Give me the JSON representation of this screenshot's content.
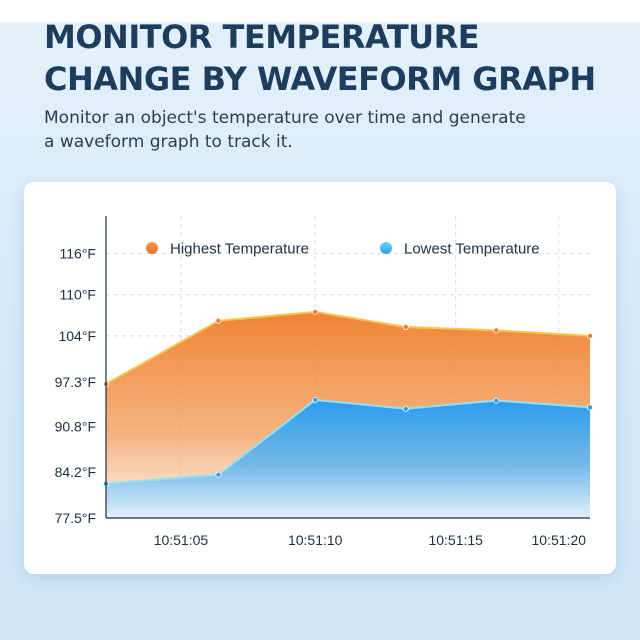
{
  "header": {
    "title_line1": "MONITOR TEMPERATURE",
    "title_line2": "CHANGE BY WAVEFORM GRAPH",
    "subtitle_line1": "Monitor an object's temperature over time and generate",
    "subtitle_line2": "a waveform graph to track it."
  },
  "colors": {
    "high": "#f08a3c",
    "high_line": "#f5c64a",
    "low": "#3aa8ee",
    "low_line": "#8fe3f5",
    "high_marker": "#f07a30",
    "low_marker": "#2a9ee6"
  },
  "chart_data": {
    "type": "area",
    "title": "",
    "xlabel": "",
    "ylabel": "",
    "unit": "°F",
    "x_range": [
      0,
      15.5
    ],
    "ylim": [
      77.5,
      120
    ],
    "yticks": [
      {
        "value": 77.5,
        "label": "77.5°F"
      },
      {
        "value": 84.2,
        "label": "84.2°F"
      },
      {
        "value": 90.8,
        "label": "90.8°F"
      },
      {
        "value": 97.3,
        "label": "97.3°F"
      },
      {
        "value": 104,
        "label": "104°F"
      },
      {
        "value": 110,
        "label": "110°F"
      },
      {
        "value": 116,
        "label": "116°F"
      }
    ],
    "xticks": [
      {
        "value": 2.4,
        "label": "10:51:05"
      },
      {
        "value": 6.7,
        "label": "10:51:10"
      },
      {
        "value": 11.2,
        "label": "10:51:15"
      },
      {
        "value": 14.5,
        "label": "10:51:20"
      }
    ],
    "grid": true,
    "legend": "top",
    "series": [
      {
        "name": "Highest Temperature",
        "x": [
          0,
          3.6,
          6.7,
          9.6,
          12.5,
          15.5
        ],
        "values": [
          97.0,
          106.2,
          107.5,
          105.3,
          104.8,
          104.0
        ]
      },
      {
        "name": "Lowest Temperature",
        "x": [
          0,
          3.6,
          6.7,
          9.6,
          12.5,
          15.5
        ],
        "values": [
          82.5,
          83.8,
          94.7,
          93.4,
          94.6,
          93.6
        ]
      }
    ]
  }
}
